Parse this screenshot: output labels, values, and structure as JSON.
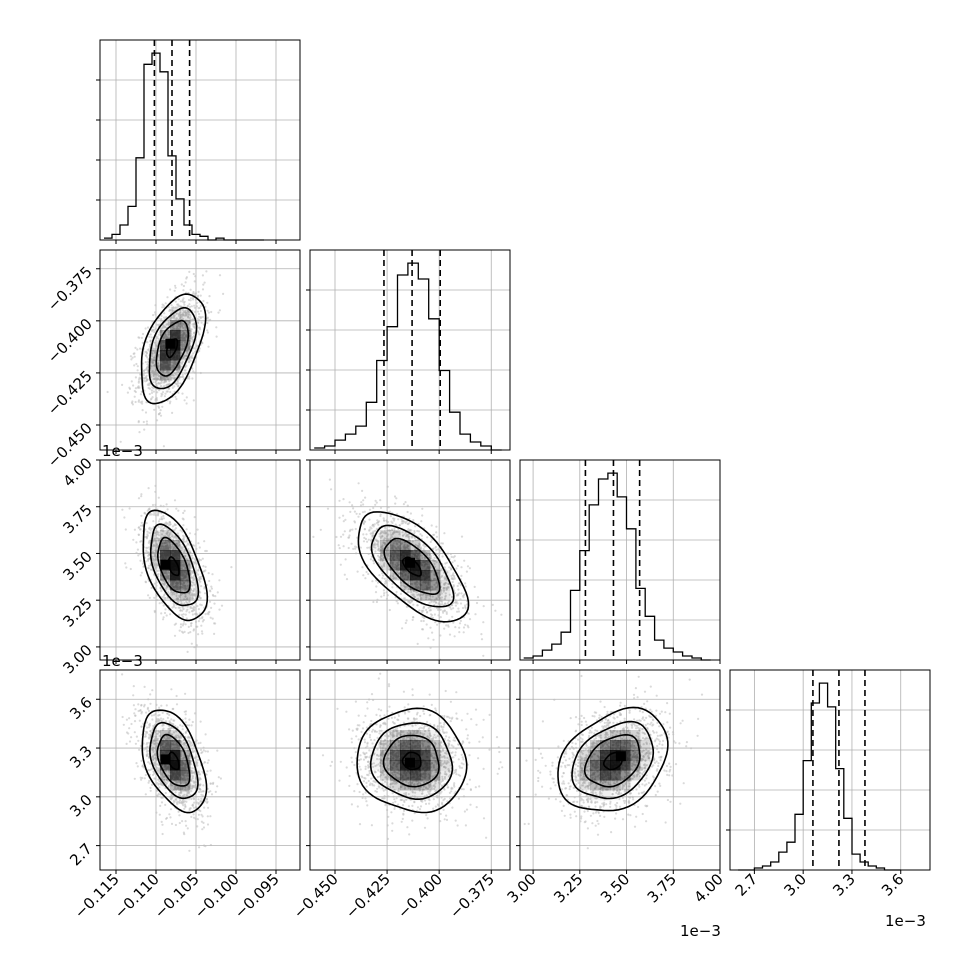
{
  "chart_data": {
    "type": "corner",
    "grid": true,
    "params": [
      {
        "lim": [
          -0.117,
          -0.092
        ],
        "ticks": [
          "−0.115",
          "−0.110",
          "−0.105",
          "−0.100",
          "−0.095"
        ],
        "tick_values": [
          -0.115,
          -0.11,
          -0.105,
          -0.1,
          -0.095
        ],
        "offset": ""
      },
      {
        "lim": [
          -0.462,
          -0.366
        ],
        "ticks": [
          "−0.450",
          "−0.425",
          "−0.400",
          "−0.375"
        ],
        "tick_values": [
          -0.45,
          -0.425,
          -0.4,
          -0.375
        ],
        "offset": "1e−3"
      },
      {
        "lim": [
          2.93,
          4.0
        ],
        "ticks": [
          "3.00",
          "3.25",
          "3.50",
          "3.75",
          "4.00"
        ],
        "tick_values": [
          3.0,
          3.25,
          3.5,
          3.75,
          4.0
        ],
        "offset": "1e−3"
      },
      {
        "lim": [
          2.55,
          3.78
        ],
        "ticks": [
          "2.7",
          "3.0",
          "3.3",
          "3.6"
        ],
        "tick_values": [
          2.7,
          3.0,
          3.3,
          3.6
        ],
        "offset": "1e−3"
      }
    ],
    "histograms": [
      {
        "param": 0,
        "edges_start": -0.1165,
        "bin_width": 0.001,
        "counts": [
          1,
          3,
          8,
          18,
          44,
          94,
          100,
          90,
          45,
          22,
          8,
          3,
          2,
          0,
          1,
          0,
          0,
          0,
          0,
          0
        ],
        "quantiles": [
          -0.1102,
          -0.108,
          -0.1058
        ]
      },
      {
        "param": 1,
        "edges_start": -0.46,
        "bin_width": 0.005,
        "counts": [
          1,
          2,
          5,
          8,
          12,
          24,
          45,
          62,
          88,
          94,
          86,
          66,
          40,
          19,
          8,
          4,
          2,
          0
        ],
        "quantiles": [
          -0.4265,
          -0.413,
          -0.3995
        ]
      },
      {
        "param": 2,
        "edges_start": 2.95,
        "bin_width": 0.05,
        "counts": [
          1,
          2,
          5,
          8,
          14,
          35,
          55,
          78,
          91,
          94,
          82,
          66,
          36,
          22,
          10,
          6,
          4,
          2,
          1,
          0
        ],
        "quantiles": [
          3.28,
          3.43,
          3.57
        ]
      },
      {
        "param": 3,
        "edges_start": 2.6,
        "bin_width": 0.05,
        "counts": [
          0,
          0,
          1,
          2,
          4,
          9,
          14,
          28,
          55,
          84,
          94,
          82,
          51,
          26,
          8,
          4,
          2,
          1,
          0,
          0
        ],
        "quantiles": [
          3.06,
          3.22,
          3.38
        ]
      }
    ],
    "scatter_panels": [
      {
        "x_param": 0,
        "y_param": 1,
        "mean": [
          -0.108,
          -0.413
        ],
        "sd": [
          0.0019,
          0.0125
        ],
        "rho": 0.5,
        "peak": [
          -0.1082,
          -0.411
        ]
      },
      {
        "x_param": 0,
        "y_param": 2,
        "mean": [
          -0.1078,
          3.43
        ],
        "sd": [
          0.0019,
          0.14
        ],
        "rho": -0.52,
        "peak": [
          -0.1088,
          3.44
        ]
      },
      {
        "x_param": 1,
        "y_param": 2,
        "mean": [
          -0.413,
          3.43
        ],
        "sd": [
          0.0125,
          0.14
        ],
        "rho": -0.62,
        "peak": [
          -0.414,
          3.45
        ]
      },
      {
        "x_param": 0,
        "y_param": 3,
        "mean": [
          -0.1078,
          3.22
        ],
        "sd": [
          0.0019,
          0.15
        ],
        "rho": -0.45,
        "peak": [
          -0.1088,
          3.23
        ]
      },
      {
        "x_param": 1,
        "y_param": 3,
        "mean": [
          -0.413,
          3.22
        ],
        "sd": [
          0.0125,
          0.15
        ],
        "rho": -0.05,
        "peak": [
          -0.414,
          3.21
        ]
      },
      {
        "x_param": 2,
        "y_param": 3,
        "mean": [
          3.43,
          3.22
        ],
        "sd": [
          0.14,
          0.15
        ],
        "rho": 0.3,
        "peak": [
          3.47,
          3.25
        ]
      }
    ],
    "colors": {
      "axes": "#000000",
      "grid": "#b0b0b0",
      "points": "#bbbbbb",
      "density": "#000000",
      "background": "#ffffff"
    }
  }
}
